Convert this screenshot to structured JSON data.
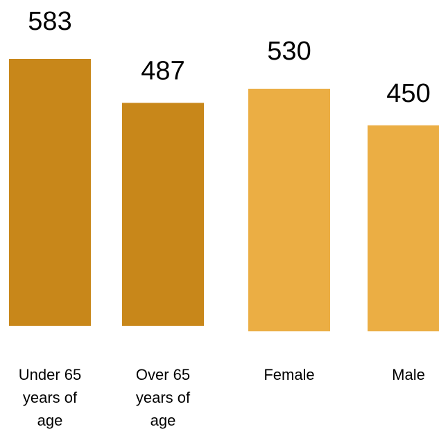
{
  "chart_data": {
    "type": "bar",
    "categories": [
      [
        "Under 65",
        "years of",
        "age"
      ],
      [
        "Over 65",
        "years of",
        "age"
      ],
      [
        "Female"
      ],
      [
        "Male"
      ]
    ],
    "values": [
      583,
      487,
      530,
      450
    ],
    "colors": [
      "#C8871A",
      "#C8871A",
      "#EBAE44",
      "#EBAE44"
    ],
    "title": "",
    "xlabel": "",
    "ylabel": "",
    "grid": false,
    "legend": "none"
  }
}
